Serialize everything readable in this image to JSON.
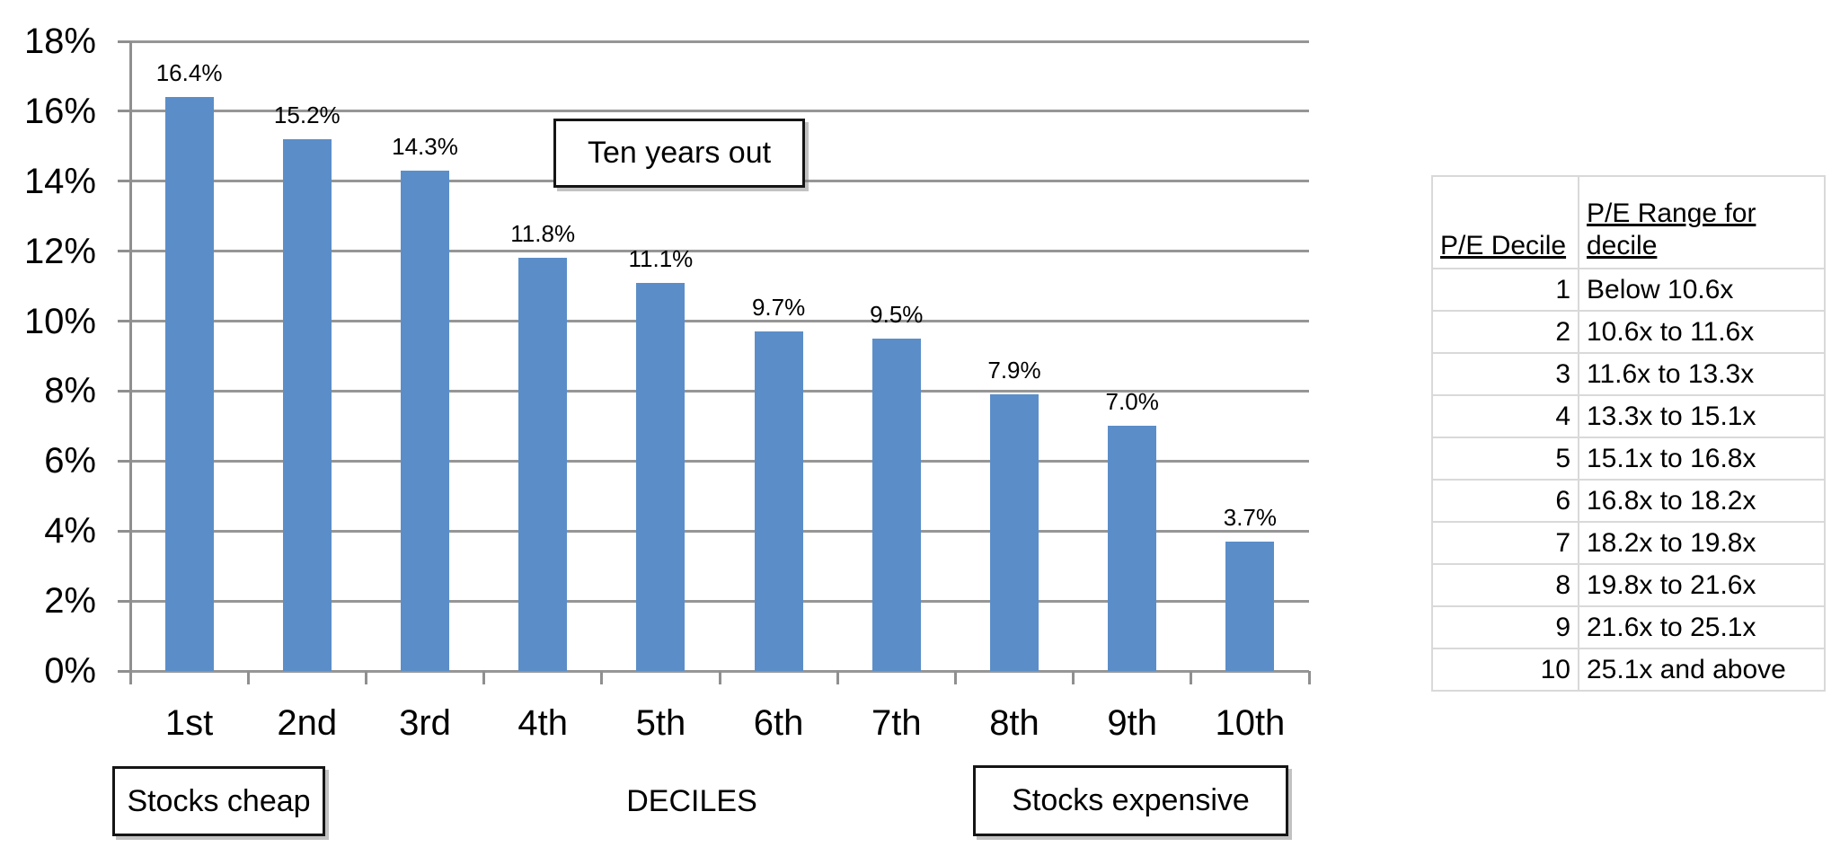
{
  "chart_data": {
    "type": "bar",
    "title": "",
    "categories": [
      "1st",
      "2nd",
      "3rd",
      "4th",
      "5th",
      "6th",
      "7th",
      "8th",
      "9th",
      "10th"
    ],
    "values": [
      16.4,
      15.2,
      14.3,
      11.8,
      11.1,
      9.7,
      9.5,
      7.9,
      7.0,
      3.7
    ],
    "data_labels": [
      "16.4%",
      "15.2%",
      "14.3%",
      "11.8%",
      "11.1%",
      "9.7%",
      "9.5%",
      "7.9%",
      "7.0%",
      "3.7%"
    ],
    "xlabel": "DECILES",
    "ylabel": "",
    "ylim": [
      0,
      18
    ],
    "ytick_step": 2,
    "ytick_labels": [
      "0%",
      "2%",
      "4%",
      "6%",
      "8%",
      "10%",
      "12%",
      "14%",
      "16%",
      "18%"
    ],
    "grid": true,
    "legend": "none",
    "bar_color": "#5b8ec8",
    "gridline_color": "#969696",
    "annotations": [
      {
        "id": "ten_years_out",
        "text": "Ten years out"
      },
      {
        "id": "stocks_cheap",
        "text": "Stocks cheap"
      },
      {
        "id": "stocks_expensive",
        "text": "Stocks expensive"
      }
    ]
  },
  "annotations": {
    "ten_years_out": "Ten years out",
    "stocks_cheap": "Stocks cheap",
    "stocks_expensive": "Stocks expensive",
    "deciles_axis_title": "DECILES"
  },
  "table": {
    "headers": [
      "P/E Decile",
      "P/E Range for decile"
    ],
    "rows": [
      {
        "decile": "1",
        "range": "Below 10.6x"
      },
      {
        "decile": "2",
        "range": "10.6x to 11.6x"
      },
      {
        "decile": "3",
        "range": "11.6x to 13.3x"
      },
      {
        "decile": "4",
        "range": "13.3x to 15.1x"
      },
      {
        "decile": "5",
        "range": "15.1x to 16.8x"
      },
      {
        "decile": "6",
        "range": "16.8x to 18.2x"
      },
      {
        "decile": "7",
        "range": "18.2x to 19.8x"
      },
      {
        "decile": "8",
        "range": "19.8x to 21.6x"
      },
      {
        "decile": "9",
        "range": "21.6x to 25.1x"
      },
      {
        "decile": "10",
        "range": "25.1x and above"
      }
    ]
  },
  "colors": {
    "bar": "#5b8ec8",
    "gridline": "#969696",
    "axis": "#8f8f8f",
    "table_border": "#d9d9d9",
    "callout_border": "#151515",
    "background": "#ffffff"
  }
}
